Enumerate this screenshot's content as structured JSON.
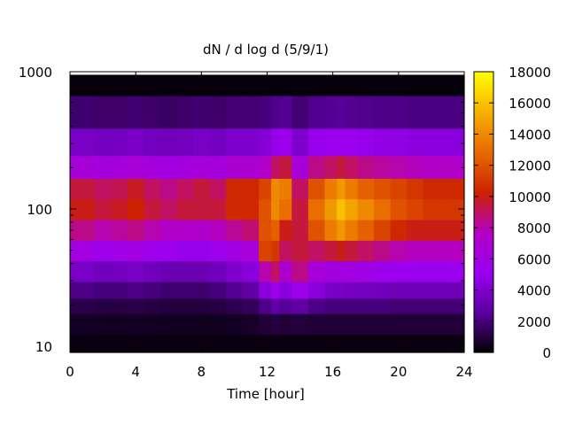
{
  "chart_data": {
    "type": "heatmap",
    "title": "dN / d log d (5/9/1)",
    "xlabel": "Time [hour]",
    "ylabel": "",
    "xlim": [
      0,
      24
    ],
    "ylim": [
      9,
      1000
    ],
    "y_scale": "log",
    "grid": false,
    "x_ticks": [
      0,
      4,
      8,
      12,
      16,
      20,
      24
    ],
    "x_tick_labels": [
      "0",
      "4",
      "8",
      "12",
      "16",
      "20",
      "24"
    ],
    "y_ticks": [
      10,
      100,
      1000
    ],
    "y_tick_labels": [
      "10",
      "100",
      "1000"
    ],
    "colorbar": {
      "range": [
        0,
        18000
      ],
      "ticks": [
        0,
        2000,
        4000,
        6000,
        8000,
        10000,
        12000,
        14000,
        16000,
        18000
      ],
      "tick_labels": [
        "0",
        "2000",
        "4000",
        "6000",
        "8000",
        "10000",
        "12000",
        "14000",
        "16000",
        "18000"
      ],
      "palette": [
        "#000000",
        "#5a009e",
        "#9a00f0",
        "#b300c4",
        "#cc2200",
        "#e86a00",
        "#f6b000",
        "#ffff00"
      ]
    },
    "diameters": [
      10,
      15,
      20,
      25,
      35,
      50,
      70,
      100,
      140,
      200,
      300,
      500,
      900
    ],
    "times": [
      0,
      1,
      2,
      3,
      4,
      5,
      6,
      7,
      8,
      9,
      10,
      11,
      12,
      12.5,
      13,
      14,
      15,
      16,
      16.5,
      17,
      18,
      19,
      20,
      21,
      22,
      23,
      24
    ],
    "values": [
      [
        300,
        300,
        300,
        300,
        300,
        300,
        300,
        300,
        300,
        300,
        300,
        300,
        300,
        300,
        300,
        300,
        300,
        300,
        300,
        300,
        300,
        300,
        300,
        300,
        300,
        300,
        300
      ],
      [
        600,
        600,
        550,
        550,
        600,
        550,
        500,
        500,
        500,
        500,
        600,
        700,
        900,
        1100,
        900,
        1000,
        900,
        900,
        900,
        900,
        900,
        900,
        900,
        900,
        900,
        900,
        900
      ],
      [
        1200,
        1200,
        1100,
        1100,
        1200,
        1100,
        1000,
        1000,
        1000,
        1100,
        1300,
        1500,
        2200,
        2800,
        2500,
        2800,
        2200,
        2000,
        2000,
        2000,
        2000,
        2000,
        1900,
        1900,
        1900,
        1900,
        1900
      ],
      [
        2200,
        2200,
        2000,
        2000,
        2200,
        2000,
        1800,
        1800,
        1800,
        2000,
        2400,
        2800,
        4500,
        5500,
        4500,
        5500,
        4500,
        3800,
        3800,
        3700,
        3600,
        3500,
        3400,
        3400,
        3400,
        3400,
        3400
      ],
      [
        3800,
        3800,
        3500,
        3600,
        3800,
        3500,
        3200,
        3200,
        3200,
        3500,
        4000,
        4500,
        8000,
        9000,
        7000,
        8500,
        6500,
        6000,
        6000,
        6000,
        5800,
        5500,
        5200,
        5200,
        5200,
        5200,
        5200
      ],
      [
        6000,
        6000,
        5500,
        5700,
        6000,
        5500,
        5200,
        5000,
        5000,
        5500,
        6000,
        6500,
        11500,
        11000,
        9000,
        9500,
        9000,
        9500,
        10000,
        9500,
        9000,
        8500,
        8000,
        7800,
        7800,
        7800,
        7800
      ],
      [
        8500,
        8500,
        8000,
        8200,
        8500,
        8000,
        7500,
        7500,
        7300,
        7800,
        8300,
        8800,
        12000,
        12500,
        10000,
        9500,
        12000,
        13500,
        14500,
        13500,
        12500,
        11500,
        10500,
        10000,
        10000,
        10000,
        10000
      ],
      [
        10000,
        10000,
        9500,
        9800,
        10300,
        9500,
        9000,
        9500,
        9500,
        9500,
        10500,
        10500,
        12000,
        14000,
        13000,
        9500,
        13000,
        14500,
        16000,
        15000,
        14000,
        13000,
        12000,
        11500,
        11000,
        11000,
        11000
      ],
      [
        9500,
        9500,
        9000,
        9200,
        9800,
        9000,
        8500,
        9000,
        9500,
        9000,
        10500,
        10500,
        11500,
        14000,
        13500,
        9000,
        12000,
        13500,
        14500,
        13500,
        12500,
        12000,
        11500,
        11000,
        10500,
        10500,
        10500
      ],
      [
        6500,
        6500,
        6200,
        6300,
        6600,
        6200,
        6000,
        6200,
        6500,
        6200,
        7000,
        7000,
        7500,
        9000,
        9500,
        6500,
        8500,
        9000,
        9500,
        9000,
        8500,
        8200,
        8000,
        7800,
        7500,
        7500,
        7500
      ],
      [
        3800,
        3800,
        3600,
        3700,
        3900,
        3600,
        3500,
        3600,
        3800,
        3600,
        4000,
        4000,
        4300,
        5000,
        5300,
        4000,
        5000,
        5200,
        5400,
        5200,
        5000,
        4800,
        4700,
        4600,
        4500,
        4500,
        4500
      ],
      [
        1800,
        1800,
        1700,
        1700,
        1800,
        1700,
        1600,
        1700,
        1800,
        1700,
        1900,
        1900,
        2000,
        2300,
        2400,
        1900,
        2300,
        2400,
        2500,
        2400,
        2300,
        2200,
        2200,
        2100,
        2100,
        2100,
        2100
      ],
      [
        150,
        150,
        150,
        150,
        150,
        150,
        150,
        150,
        150,
        150,
        150,
        150,
        150,
        150,
        150,
        150,
        150,
        150,
        150,
        150,
        150,
        150,
        150,
        150,
        150,
        150,
        150
      ]
    ]
  }
}
